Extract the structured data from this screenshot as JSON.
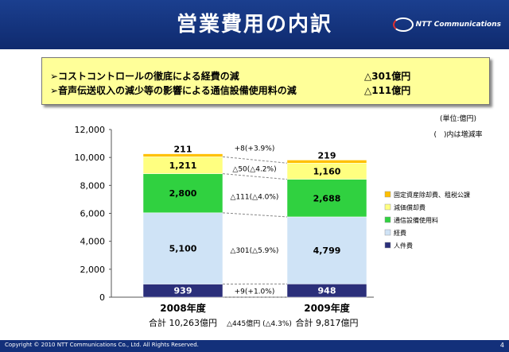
{
  "title": "営業費用の内訳",
  "logo_text": "NTT Communications",
  "summary": [
    {
      "text": "➢コストコントロールの徹底による経費の減",
      "value": "△301億円"
    },
    {
      "text": "➢音声伝送収入の減少等の影響による通信設備使用料の減",
      "value": "△111億円"
    }
  ],
  "unit_note": "(単位:億円)",
  "paren_note": "(　)内は増減率",
  "chart_data": {
    "type": "bar",
    "stacked": true,
    "categories": [
      "2008年度",
      "2009年度"
    ],
    "y_ticks": [
      "12,000",
      "10,000",
      "8,000",
      "6,000",
      "4,000",
      "2,000",
      "0"
    ],
    "ylim": [
      0,
      12000
    ],
    "series": [
      {
        "name": "人件費",
        "values": [
          939,
          948
        ],
        "labels": [
          "939",
          "948"
        ],
        "color": "#2b2f7a"
      },
      {
        "name": "経費",
        "values": [
          5100,
          4799
        ],
        "labels": [
          "5,100",
          "4,799"
        ],
        "color": "#cfe3f6"
      },
      {
        "name": "通信設備使用料",
        "values": [
          2800,
          2688
        ],
        "labels": [
          "2,800",
          "2,688"
        ],
        "color": "#30d140"
      },
      {
        "name": "減価償却費",
        "values": [
          1211,
          1160
        ],
        "labels": [
          "1,211",
          "1,160"
        ],
        "color": "#ffff80"
      },
      {
        "name": "固定資産除却費、租税公課",
        "values": [
          211,
          219
        ],
        "labels": [
          "211",
          "219"
        ],
        "color": "#ffc000"
      }
    ],
    "change_labels": [
      "+9(+1.0%)",
      "△301(△5.9%)",
      "△111(△4.0%)",
      "△50(△4.2%)",
      "+8(+3.9%)"
    ],
    "totals": [
      "合計 10,263億円",
      "合計 9,817億円"
    ],
    "total_change": "△445億円 (△4.3%)",
    "legend_order": [
      "固定資産除却費、租税公課",
      "減価償却費",
      "通信設備使用料",
      "経費",
      "人件費"
    ]
  },
  "footer": {
    "copyright": "Copyright © 2010 NTT Communications Co., Ltd. All Rights Reserved.",
    "page": "4"
  }
}
